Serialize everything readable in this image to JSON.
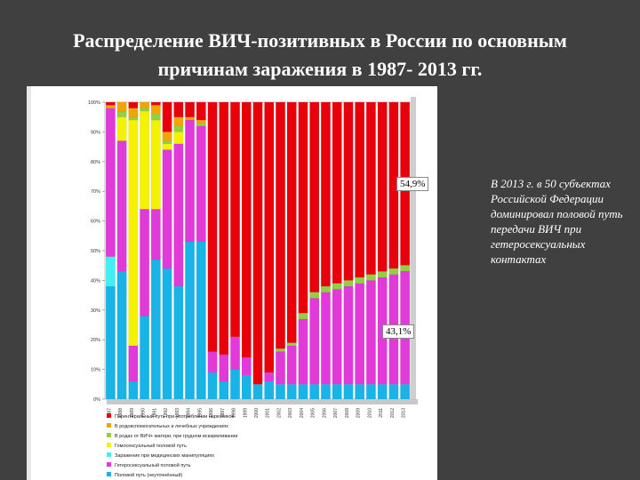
{
  "slide": {
    "title_line1": "Распределение ВИЧ-позитивных в России по основным",
    "title_line2": "причинам заражения в 1987- 2013 гг."
  },
  "callouts": {
    "top": "54,9%",
    "bottom": "43,1%"
  },
  "side_note": "В 2013 г. в 50 субъектах Российской Федерации доминировал половой путь передачи ВИЧ при гетеросексуальных контактах",
  "colors": {
    "red": "#e8000b",
    "magenta": "#e13ad8",
    "yellow": "#f3f200",
    "cyan": "#18b4e8",
    "lightcyan": "#40f0f0",
    "green": "#8ed141",
    "orange": "#f0a500"
  },
  "chart_data": {
    "type": "bar",
    "stacked": true,
    "ylim": [
      0,
      100
    ],
    "yticks": [
      "0%",
      "10%",
      "20%",
      "30%",
      "40%",
      "50%",
      "60%",
      "70%",
      "80%",
      "90%",
      "100%"
    ],
    "categories": [
      "1987",
      "1988",
      "1989",
      "1990",
      "1991",
      "1992",
      "1993",
      "1994",
      "1995",
      "1996",
      "1997",
      "1998",
      "1999",
      "2000",
      "2001",
      "2002",
      "2003",
      "2004",
      "2005",
      "2006",
      "2007",
      "2008",
      "2009",
      "2010",
      "2011",
      "2012",
      "2013"
    ],
    "series": [
      {
        "color": "cyan",
        "values": [
          38,
          43,
          6,
          28,
          47,
          44,
          38,
          53,
          53,
          9,
          6,
          10,
          8,
          5,
          6,
          5,
          5,
          5,
          5,
          5,
          5,
          5,
          5,
          5,
          5,
          5,
          5
        ]
      },
      {
        "color": "lightcyan",
        "values": [
          10,
          0,
          0,
          0,
          0,
          0,
          0,
          0,
          0,
          0,
          0,
          0,
          0,
          0,
          0,
          0,
          0,
          0,
          0,
          0,
          0,
          0,
          0,
          0,
          0,
          0,
          0
        ]
      },
      {
        "color": "magenta",
        "values": [
          50,
          44,
          12,
          36,
          17,
          40,
          48,
          41,
          39,
          7,
          9,
          11,
          6,
          0,
          3,
          11,
          13,
          22,
          29,
          31,
          32,
          33,
          34,
          35,
          36,
          37,
          38.1
        ]
      },
      {
        "color": "yellow",
        "values": [
          0,
          8,
          76,
          33,
          30,
          2,
          4,
          0,
          0,
          0,
          0,
          0,
          0,
          0,
          0,
          0,
          0,
          0,
          0,
          0,
          0,
          0,
          0,
          0,
          0,
          0,
          0
        ]
      },
      {
        "color": "green",
        "values": [
          0,
          2,
          1,
          1,
          2,
          1,
          2,
          0,
          1,
          0,
          0,
          0,
          0,
          0,
          0,
          1,
          1,
          2,
          2,
          2,
          2,
          2,
          2,
          2,
          2,
          2,
          2
        ]
      },
      {
        "color": "orange",
        "values": [
          1,
          3,
          3,
          2,
          3,
          3,
          3,
          1,
          1,
          0,
          0,
          0,
          0,
          0,
          0,
          0,
          0,
          0,
          0,
          0,
          0,
          0,
          0,
          0,
          0,
          0,
          0
        ]
      },
      {
        "color": "red",
        "values": [
          1,
          0,
          2,
          0,
          1,
          10,
          5,
          5,
          6,
          84,
          85,
          79,
          86,
          95,
          91,
          83,
          81,
          71,
          64,
          62,
          61,
          60,
          59,
          58,
          57,
          56,
          54.9
        ]
      }
    ],
    "legend": [
      {
        "color": "red",
        "label": "Парентеральный путь при употреблении наркотиков"
      },
      {
        "color": "orange",
        "label": "В родовспомогательных и лечебных учреждениях"
      },
      {
        "color": "green",
        "label": "В родах от ВИЧ+ матери, при грудном вскармливании"
      },
      {
        "color": "yellow",
        "label": "Гомосексуальный половой путь"
      },
      {
        "color": "lightcyan",
        "label": "Заражение при медицинских манипуляциях"
      },
      {
        "color": "magenta",
        "label": "Гетеросексуальный половой путь"
      },
      {
        "color": "cyan",
        "label": "Половой путь (неуточнённый)"
      }
    ]
  }
}
